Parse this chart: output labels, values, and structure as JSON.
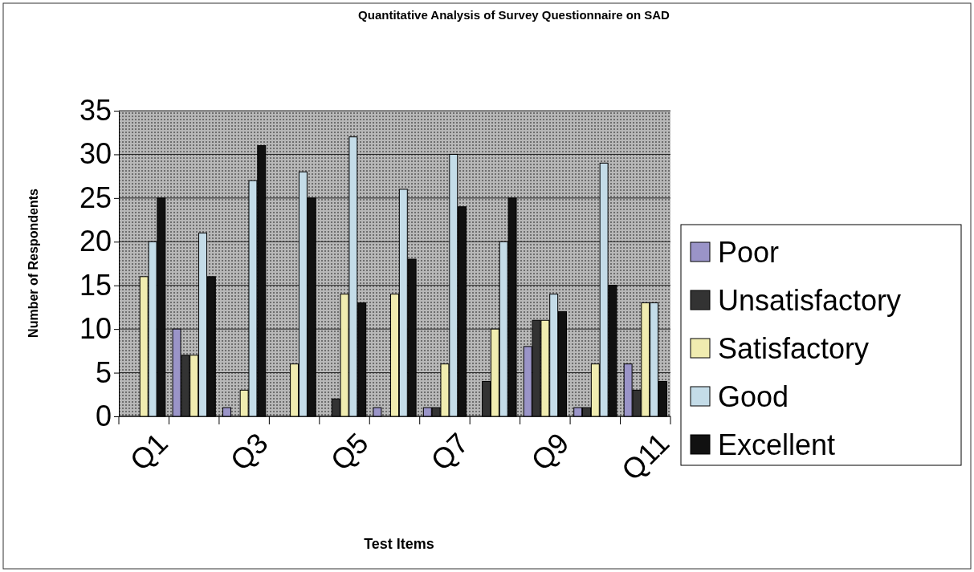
{
  "chart_data": {
    "type": "bar",
    "title": "Quantitative Analysis of Survey Questionnaire on SAD",
    "xlabel": "Test Items",
    "ylabel": "Number of Respondents",
    "categories": [
      "Q1",
      null,
      "Q3",
      null,
      "Q5",
      null,
      "Q7",
      null,
      "Q9",
      null,
      "Q11"
    ],
    "series": [
      {
        "name": "Poor",
        "color": "#9a94c8",
        "values": [
          0,
          10,
          1,
          0,
          0,
          1,
          1,
          0,
          8,
          1,
          6
        ]
      },
      {
        "name": "Unsatisfactory",
        "color": "#333333",
        "values": [
          0,
          7,
          0,
          0,
          2,
          0,
          1,
          4,
          11,
          1,
          3
        ]
      },
      {
        "name": "Satisfactory",
        "color": "#f0ecb0",
        "values": [
          16,
          7,
          3,
          6,
          14,
          14,
          6,
          10,
          11,
          6,
          13
        ]
      },
      {
        "name": "Good",
        "color": "#c4dce8",
        "values": [
          20,
          21,
          27,
          28,
          32,
          26,
          30,
          20,
          14,
          29,
          13
        ]
      },
      {
        "name": "Excellent",
        "color": "#111111",
        "values": [
          25,
          16,
          31,
          25,
          13,
          18,
          24,
          25,
          12,
          15,
          4
        ]
      }
    ],
    "ylim": [
      0,
      35
    ],
    "yticks": [
      0,
      5,
      10,
      15,
      20,
      25,
      30,
      35
    ],
    "grid": "y",
    "legend": "right"
  }
}
